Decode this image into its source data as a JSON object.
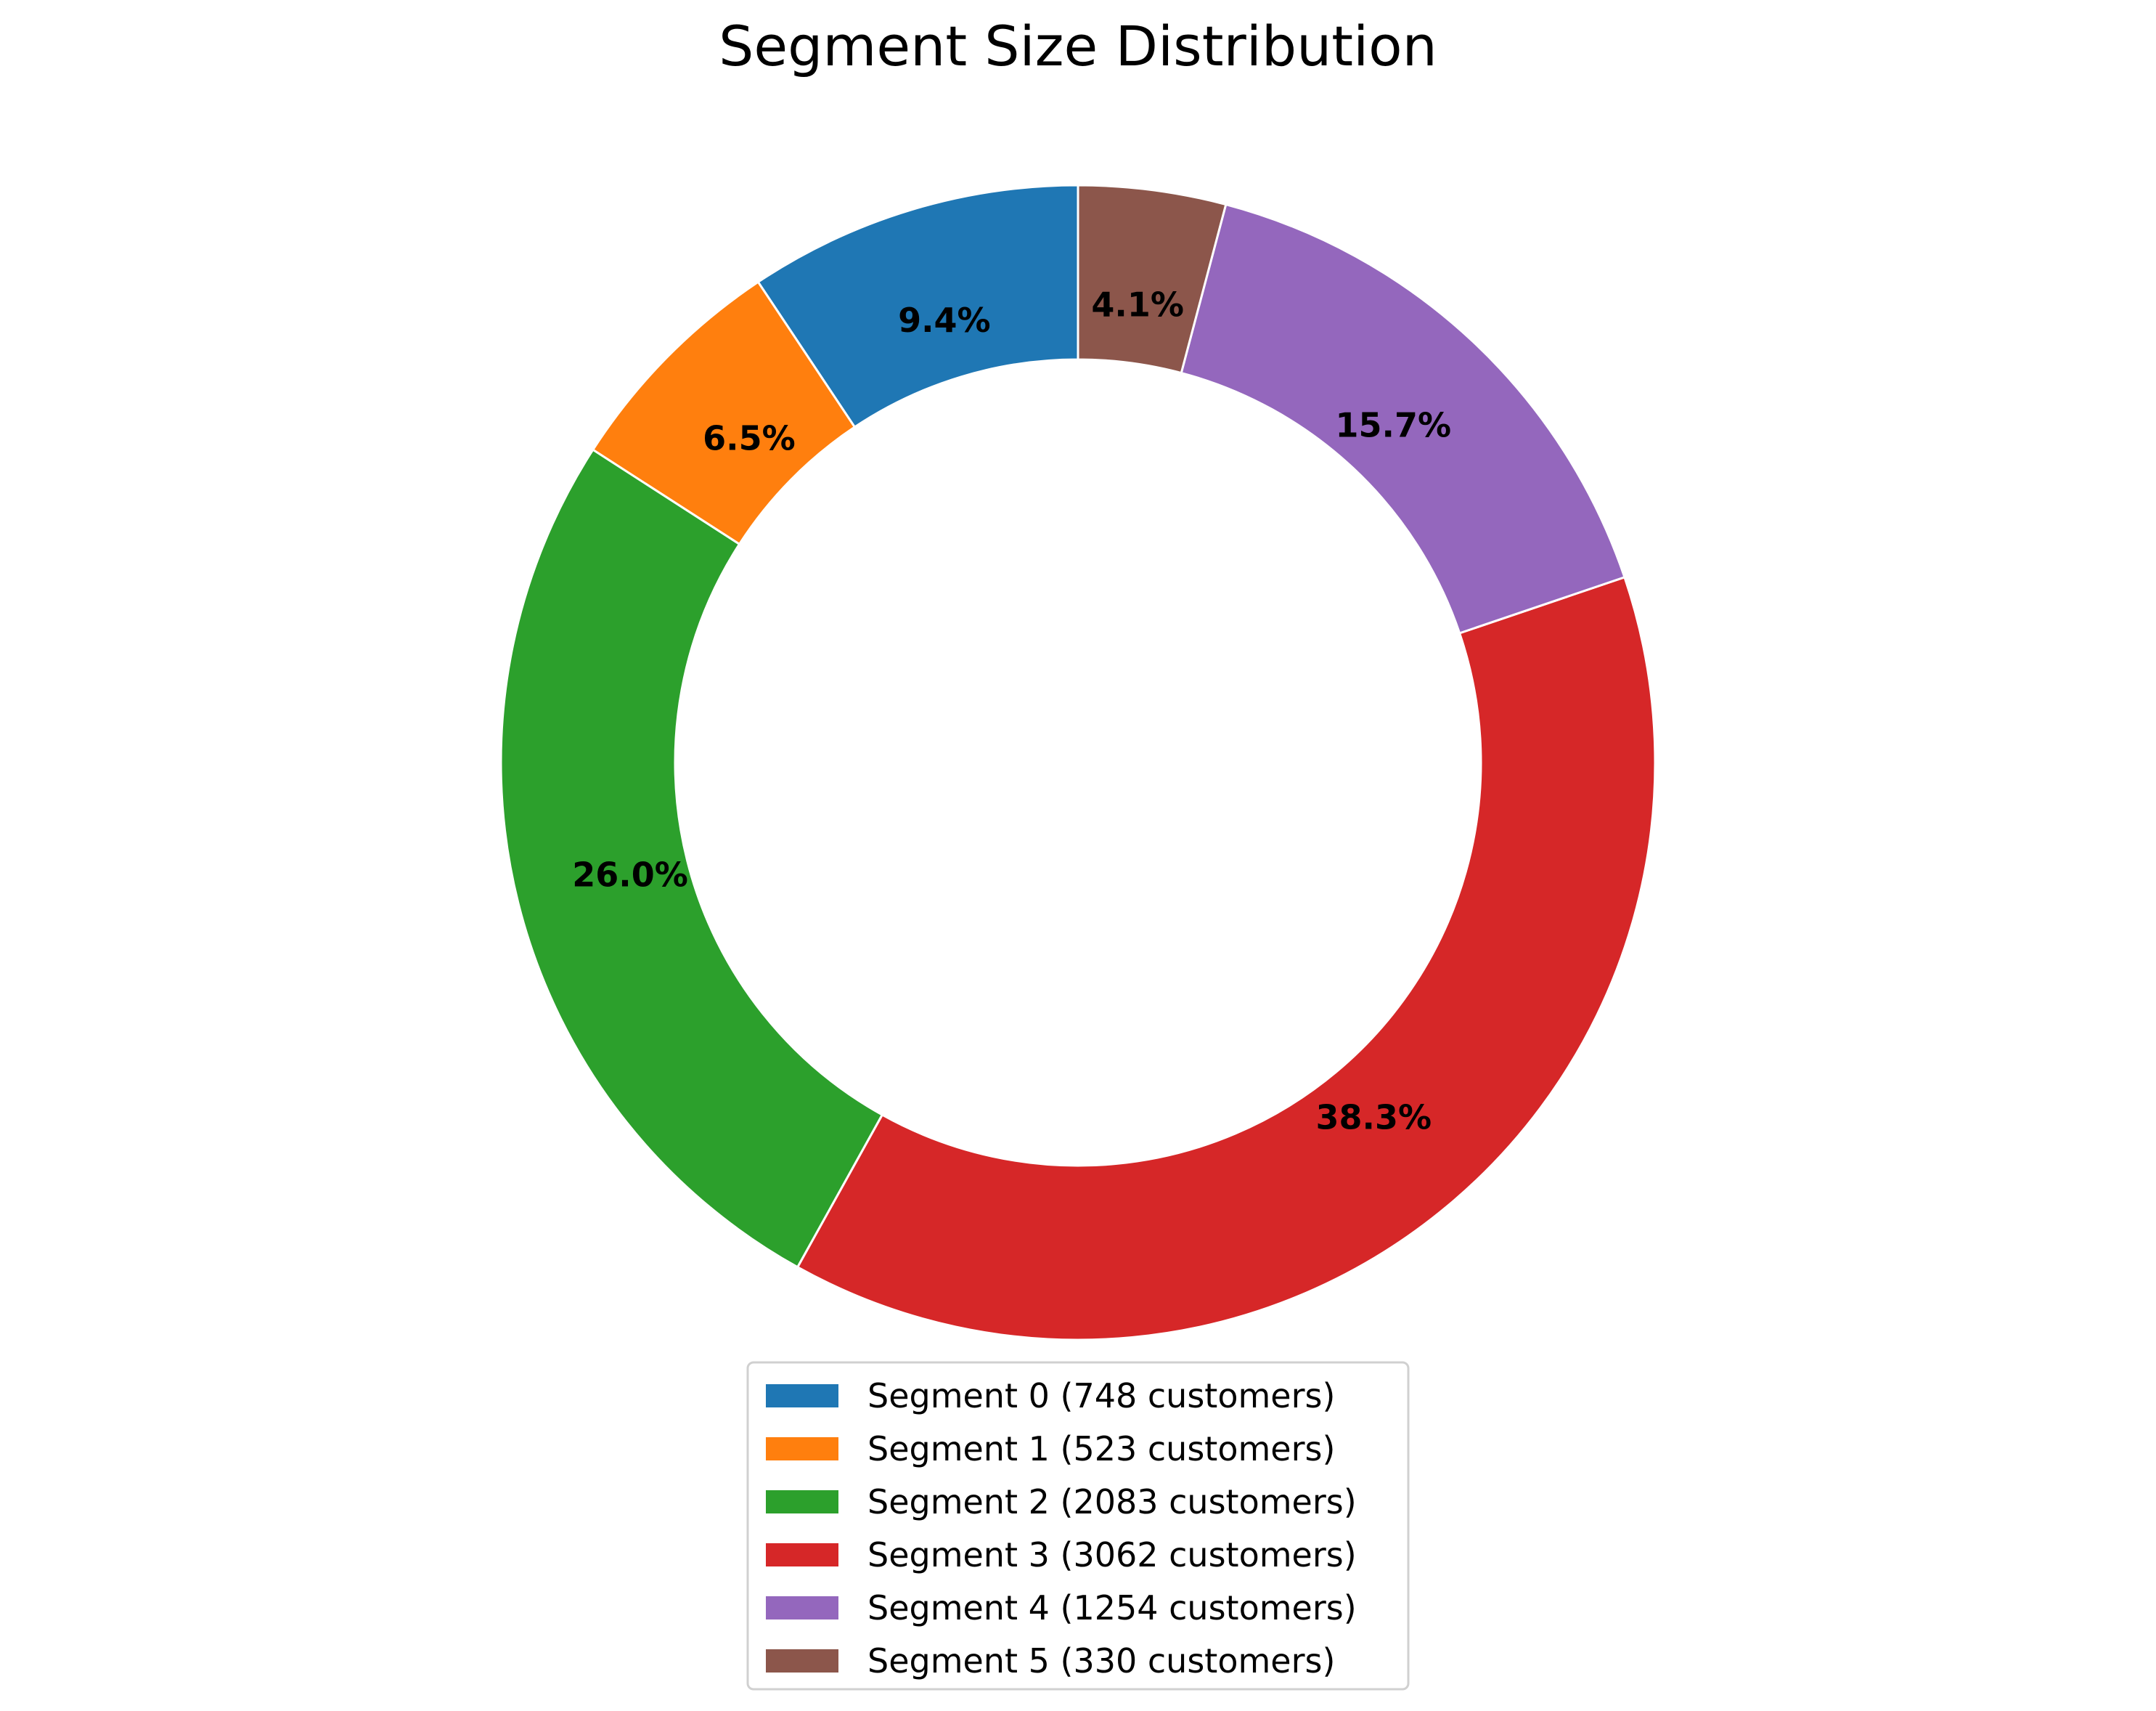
{
  "chart_data": {
    "type": "pie",
    "style": "donut",
    "title": "Segment Size Distribution",
    "start_angle_deg": 90,
    "direction": "counterclockwise",
    "slices": [
      {
        "label": "Segment 0 (748 customers)",
        "value": 748,
        "pct_label": "9.4%",
        "color": "#1f77b4"
      },
      {
        "label": "Segment 1 (523 customers)",
        "value": 523,
        "pct_label": "6.5%",
        "color": "#ff7f0e"
      },
      {
        "label": "Segment 2 (2083 customers)",
        "value": 2083,
        "pct_label": "26.0%",
        "color": "#2ca02c"
      },
      {
        "label": "Segment 3 (3062 customers)",
        "value": 3062,
        "pct_label": "38.3%",
        "color": "#d62728"
      },
      {
        "label": "Segment 4 (1254 customers)",
        "value": 1254,
        "pct_label": "15.7%",
        "color": "#9467bd"
      },
      {
        "label": "Segment 5 (330 customers)",
        "value": 330,
        "pct_label": "4.1%",
        "color": "#8c564b"
      }
    ],
    "legend_position": "bottom-center",
    "grid": false
  }
}
